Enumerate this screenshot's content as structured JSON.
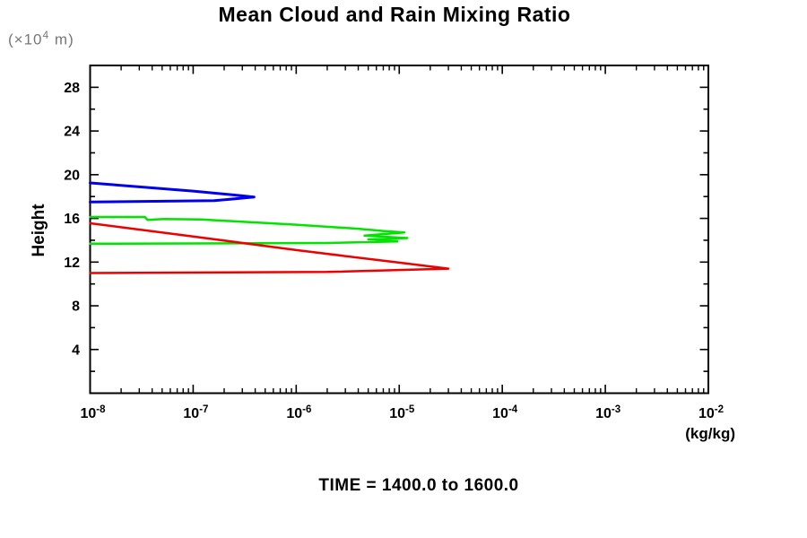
{
  "title": "Mean Cloud and Rain Mixing Ratio",
  "y_axis": {
    "unit_prefix": "(×10",
    "unit_exponent": "4",
    "unit_suffix": " m)",
    "title": "Height"
  },
  "x_axis": {
    "unit": "(kg/kg)"
  },
  "footer": {
    "text": "TIME = 1400.0 to 1600.0"
  },
  "chart_data": {
    "type": "line",
    "title": "Mean Cloud and Rain Mixing Ratio",
    "xlabel": "(kg/kg)",
    "ylabel": "Height",
    "y_unit": "(x10^4 m)",
    "x_scale": "log",
    "xlim": [
      1e-08,
      0.01
    ],
    "ylim": [
      0,
      30
    ],
    "x_tick_base": "10",
    "x_tick_exponents": [
      -8,
      -7,
      -6,
      -5,
      -4,
      -3,
      -2
    ],
    "y_major_ticks": [
      4,
      8,
      12,
      16,
      20,
      24,
      28
    ],
    "y_minor_step": 2,
    "grid": false,
    "legend": "none",
    "annotation": "TIME = 1400.0 to 1600.0",
    "frame_color": "#000000",
    "series": [
      {
        "name": "blue-profile",
        "color": "#0000ee",
        "stroke_width": 3,
        "points": [
          [
            1e-08,
            19.25
          ],
          [
            1e-07,
            18.5
          ],
          [
            2.8e-07,
            18.1
          ],
          [
            3.9e-07,
            17.95
          ],
          [
            1.6e-07,
            17.62
          ],
          [
            1e-08,
            17.5
          ]
        ]
      },
      {
        "name": "green-profile",
        "color": "#00e400",
        "stroke_width": 2.5,
        "points": [
          [
            1e-08,
            16.13
          ],
          [
            3.4e-08,
            16.13
          ],
          [
            3.6e-08,
            15.87
          ],
          [
            5.2e-08,
            15.95
          ],
          [
            1.2e-07,
            15.9
          ],
          [
            1e-06,
            15.42
          ],
          [
            4e-06,
            15.05
          ],
          [
            7e-06,
            14.85
          ],
          [
            1.12e-05,
            14.72
          ],
          [
            4.6e-06,
            14.42
          ],
          [
            1.2e-05,
            14.2
          ],
          [
            5e-06,
            14.08
          ],
          [
            9.6e-06,
            13.9
          ],
          [
            2e-06,
            13.75
          ],
          [
            1e-08,
            13.68
          ]
        ]
      },
      {
        "name": "red-profile",
        "color": "#ee0000",
        "stroke_width": 2.5,
        "points": [
          [
            1e-08,
            15.55
          ],
          [
            1e-07,
            14.35
          ],
          [
            1e-06,
            13.1
          ],
          [
            1e-05,
            11.95
          ],
          [
            3e-05,
            11.4
          ],
          [
            2e-06,
            11.1
          ],
          [
            1e-08,
            11.0
          ]
        ]
      }
    ]
  }
}
